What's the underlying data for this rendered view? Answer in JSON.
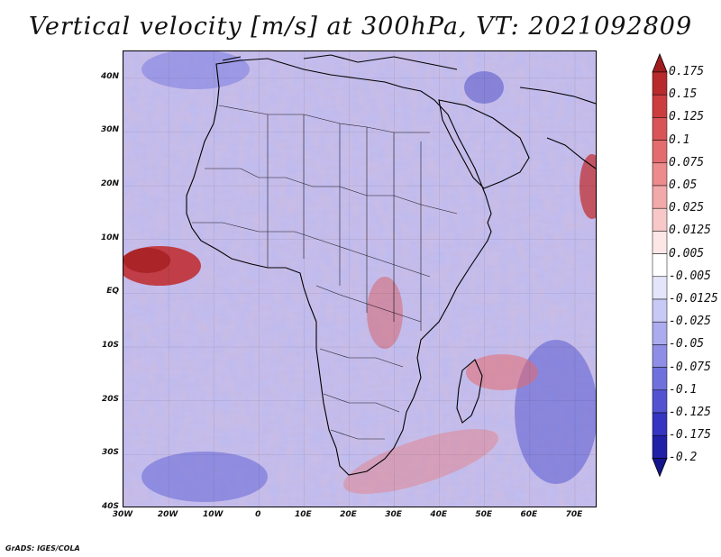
{
  "header": {
    "title": "Vertical velocity [m/s] at 300hPa, VT: 2021092809"
  },
  "map": {
    "lat_labels": [
      "40N",
      "30N",
      "20N",
      "10N",
      "EQ",
      "10S",
      "20S",
      "30S",
      "40S"
    ],
    "lon_labels": [
      "30W",
      "20W",
      "10W",
      "0",
      "10E",
      "20E",
      "30E",
      "40E",
      "50E",
      "60E",
      "70E"
    ],
    "lon_range": [
      -30,
      75
    ],
    "lat_range": [
      -40,
      45
    ]
  },
  "colorbar": {
    "levels": [
      "0.175",
      "0.15",
      "0.125",
      "0.1",
      "0.075",
      "0.05",
      "0.025",
      "0.0125",
      "0.005",
      "-0.005",
      "-0.0125",
      "-0.025",
      "-0.05",
      "-0.075",
      "-0.1",
      "-0.125",
      "-0.175",
      "-0.2"
    ],
    "colors": [
      "#a01c1e",
      "#b82a2c",
      "#cc3d3f",
      "#d95457",
      "#e36c6f",
      "#ec8a8c",
      "#f2a9aa",
      "#f8c8c8",
      "#fde6e6",
      "#ffffff",
      "#e4e4fb",
      "#c9c9f5",
      "#ababee",
      "#8e8ee6",
      "#7070dd",
      "#5353d2",
      "#3535c2",
      "#2121a8",
      "#14148c"
    ]
  },
  "footer": {
    "credit": "GrADS: IGES/COLA"
  }
}
